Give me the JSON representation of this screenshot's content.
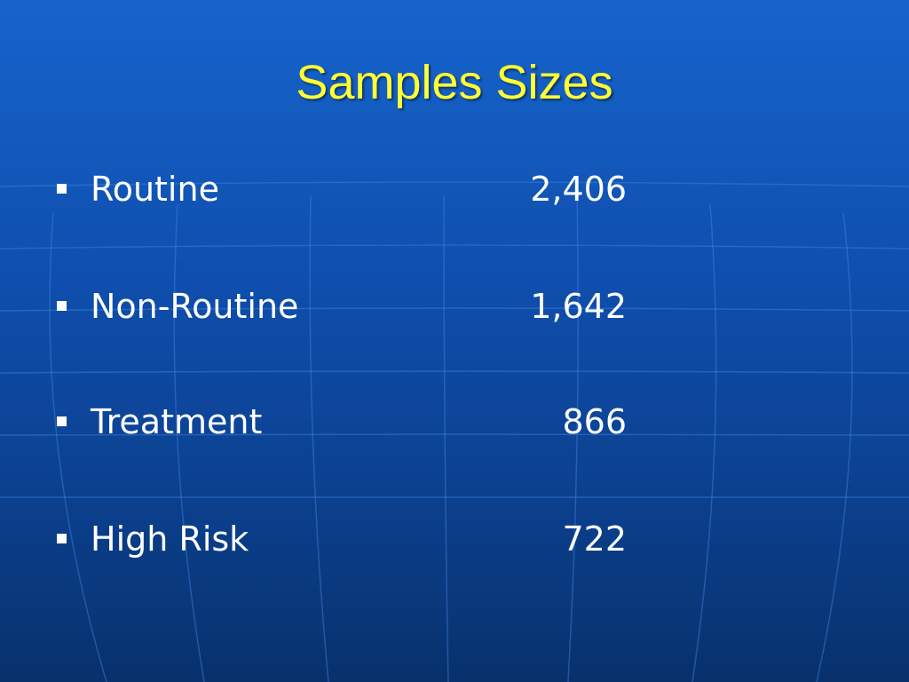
{
  "slide": {
    "title": "Samples Sizes",
    "items": [
      {
        "label": "Routine",
        "value": "2,406"
      },
      {
        "label": "Non-Routine",
        "value": "1,642"
      },
      {
        "label": "Treatment",
        "value": "866"
      },
      {
        "label": "High Risk",
        "value": "722"
      }
    ]
  }
}
